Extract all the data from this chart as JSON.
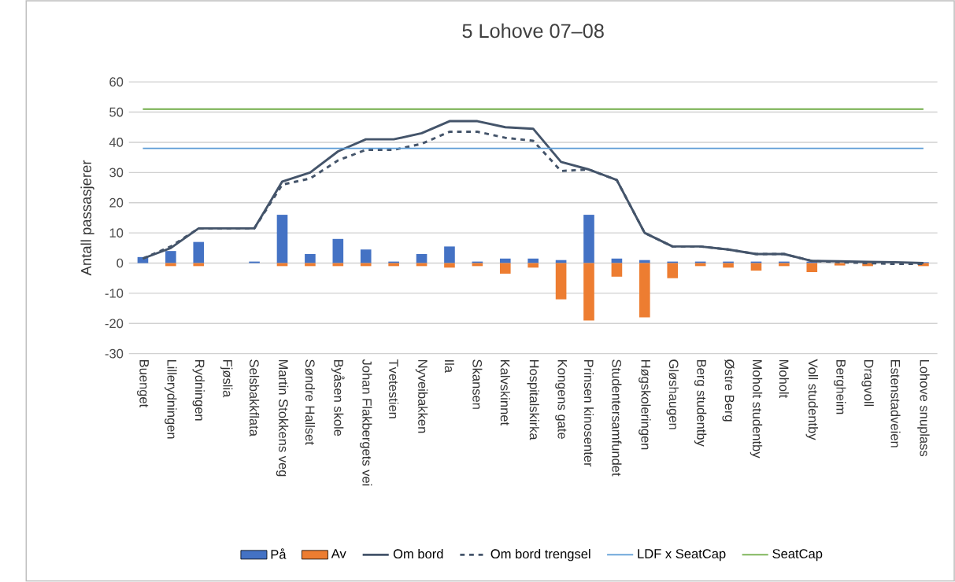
{
  "chart_data": {
    "type": "bar",
    "title": "5 Lohove 07–08",
    "ylabel": "Antall passasjerer",
    "categories": [
      "Buenget",
      "Lillerydningen",
      "Rydningen",
      "Fjøslia",
      "Selsbakkflata",
      "Martin Stokkens veg",
      "Søndre Hallset",
      "Byåsen skole",
      "Johan Flakbergets vei",
      "Tvetestien",
      "Nyveibakken",
      "Ila",
      "Skansen",
      "Kalvskinnet",
      "Hospitalskirka",
      "Kongens gate",
      "Prinsen kinosenter",
      "Studentersamfundet",
      "Høgskoleringen",
      "Gløshaugen",
      "Berg studentby",
      "Østre Berg",
      "Moholt studentby",
      "Moholt",
      "Voll studentby",
      "Bergheim",
      "Dragvoll",
      "Estenstadveien",
      "Lohove snuplass"
    ],
    "series": [
      {
        "name": "På",
        "color": "#4472c4",
        "values": [
          2,
          4,
          7,
          null,
          0.5,
          16,
          3,
          8,
          4.5,
          0.5,
          3,
          5.5,
          0.5,
          1.5,
          1.5,
          1,
          16,
          1.5,
          1,
          0.5,
          0.5,
          0.5,
          0.5,
          0.5,
          0.5,
          null,
          null,
          null,
          0.3
        ]
      },
      {
        "name": "Av",
        "color": "#ed7d31",
        "values": [
          null,
          -1,
          -1,
          null,
          null,
          -1,
          -1,
          -1,
          -1,
          -1,
          -1,
          -1.5,
          -1,
          -3.5,
          -1.5,
          -12,
          -19,
          -4.5,
          -18,
          -5,
          -1,
          -1.5,
          -2.5,
          -1,
          -3,
          -0.8,
          -1,
          null,
          -1
        ]
      },
      {
        "name": "Om bord",
        "type": "line",
        "color": "#44546a",
        "values": [
          1.5,
          5,
          11.5,
          11.5,
          11.5,
          27,
          30,
          37,
          41,
          41,
          43,
          47,
          47,
          45,
          44.5,
          33.5,
          31,
          27.5,
          10,
          5.5,
          5.5,
          4.5,
          3,
          3,
          0.7,
          0.6,
          0.4,
          0.3,
          0
        ]
      },
      {
        "name": "Om bord trengsel",
        "type": "line",
        "line_style": "dashed",
        "color": "#44546a",
        "values": [
          1.5,
          5.5,
          11.5,
          11.5,
          11.5,
          26,
          28,
          34,
          37.5,
          37.5,
          39.5,
          43.5,
          43.5,
          41.5,
          40.5,
          30.5,
          31,
          27.5,
          10,
          5.5,
          5.5,
          4.5,
          3,
          3,
          0.7,
          0.3,
          0,
          -0.3,
          -0.3
        ]
      }
    ],
    "ref_lines": [
      {
        "axis": "y",
        "value": 38,
        "label": "LDF x SeatCap",
        "color": "#5b9bd5"
      },
      {
        "axis": "y",
        "value": 51,
        "label": "SeatCap",
        "color": "#70ad47"
      }
    ],
    "ylim": [
      -30,
      60
    ],
    "yticks": [
      -30,
      -20,
      -10,
      0,
      10,
      20,
      30,
      40,
      50,
      60
    ],
    "grid": "y",
    "legend": "bottom"
  }
}
